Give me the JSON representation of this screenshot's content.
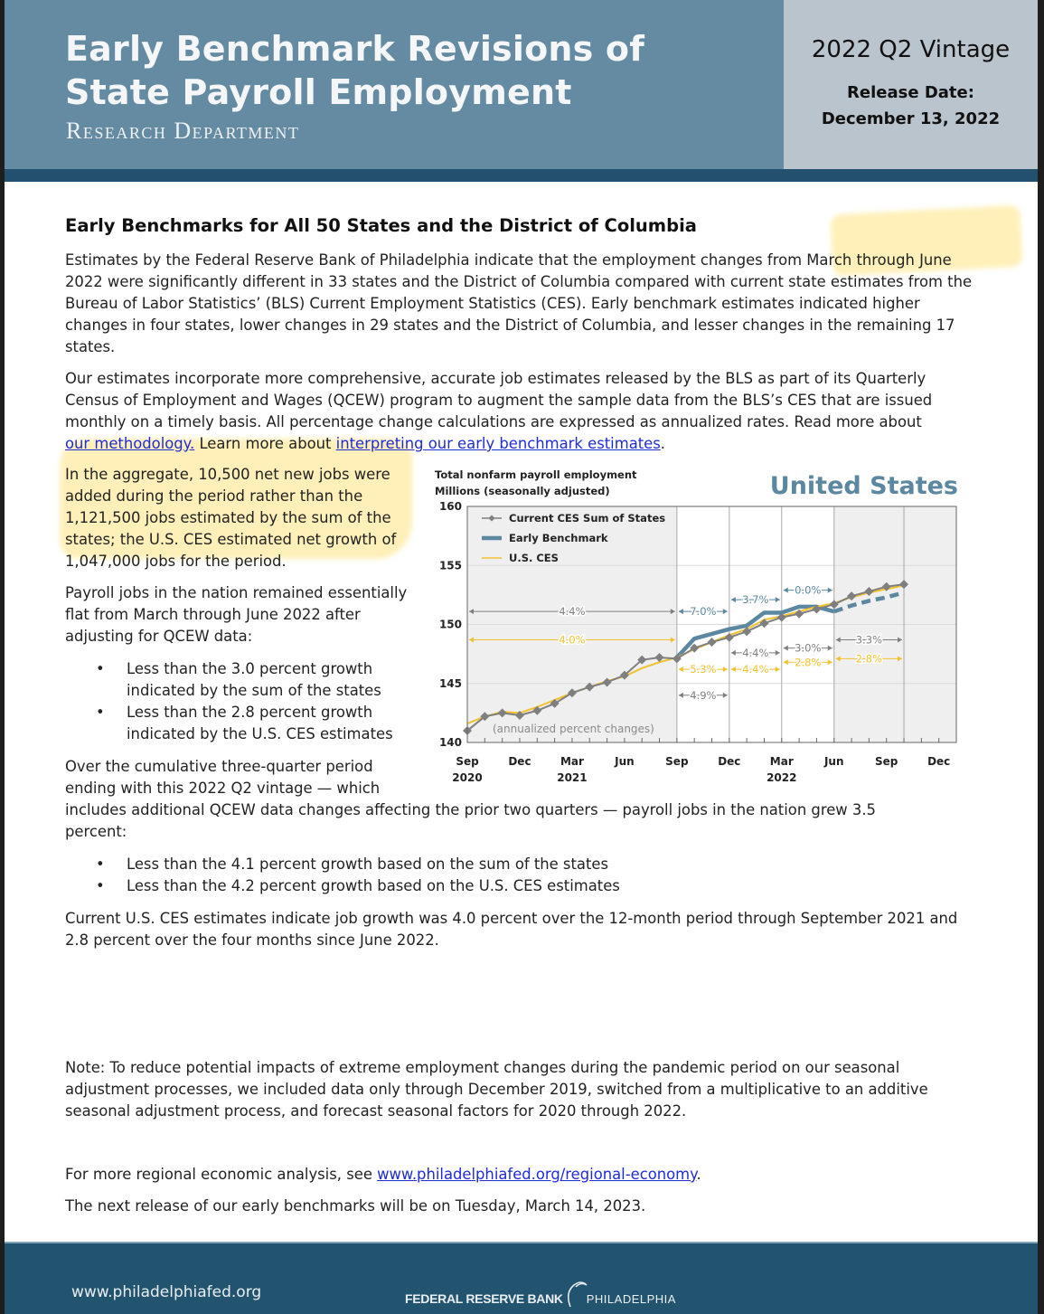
{
  "header": {
    "title_line1": "Early Benchmark Revisions of",
    "title_line2": "State Payroll Employment",
    "department": "Research Department",
    "vintage": "2022 Q2 Vintage",
    "release_label": "Release Date:",
    "release_date": "December 13, 2022"
  },
  "main": {
    "heading": "Early Benchmarks for All 50 States and the District of Columbia",
    "para1": "Estimates by the Federal Reserve Bank of Philadelphia indicate that the employment changes from March through June 2022 were significantly different in 33 states and the District of Columbia compared with current state estimates from the Bureau of Labor Statistics’ (BLS) Current Employment Statistics (CES). Early benchmark estimates indicated higher changes in four states, lower changes in 29 states and the District of Columbia, and lesser changes in the remaining 17 states.",
    "para2_a": "Our estimates incorporate more comprehensive, accurate job estimates released by the BLS as part of its Quarterly Census of Employment and Wages (QCEW) program to augment the sample data from the BLS’s CES that are issued monthly on a timely basis. All percentage change calculations are expressed as annualized rates. Read more about ",
    "link_methodology": "our methodology.",
    "para2_b": " Learn more about ",
    "link_interpreting": "interpreting our early benchmark estimates",
    "para2_c": ".",
    "para3": "In the aggregate, 10,500 net new jobs were added during the period rather than the 1,121,500 jobs estimated by the sum of the states; the U.S. CES estimated net growth of 1,047,000 jobs for the period.",
    "para4": "Payroll jobs in the nation remained essentially flat from March through June 2022 after adjusting for QCEW data:",
    "bullets1": [
      "Less than the 3.0 percent growth indicated by the sum of the states",
      "Less than the 2.8 percent growth indicated by the U.S. CES estimates"
    ],
    "para5_a": "Over the cumulative three-quarter period ending with this 2022 Q2 vintage — which",
    "para5_b": "includes additional QCEW data changes affecting the prior two quarters — payroll jobs in the nation grew 3.5 percent:",
    "bullets2": [
      "Less than the 4.1 percent growth based on the sum of the states",
      "Less than the 4.2 percent growth based on the U.S. CES estimates"
    ],
    "para6": "Current U.S. CES estimates indicate job growth was 4.0 percent over the 12-month period through September 2021 and 2.8 percent over the four months since June 2022.",
    "note": "Note: To reduce potential impacts of extreme employment changes during the pandemic period on our seasonal adjustment processes, we included data only through December 2019, switched from a multiplicative to an additive seasonal adjustment process, and forecast seasonal factors for 2020 through 2022.",
    "more_a": "For more regional economic analysis, see ",
    "more_link": "www.philadelphiafed.org/regional-economy",
    "more_b": ".",
    "next_release": "The next release of our early benchmarks will be on Tuesday, March 14, 2023."
  },
  "footer": {
    "url": "www.philadelphiafed.org",
    "logo_text_bold": "FEDERAL RESERVE BANK",
    "logo_text": "PHILADELPHIA"
  },
  "colors": {
    "header_blue": "#658ba2",
    "header_gray": "#b9c4cc",
    "dark_blue": "#23506f",
    "sum_states": "#7f7f7f",
    "early_benchmark": "#5b87a0",
    "us_ces": "#f2c12e"
  },
  "chart_data": {
    "type": "line",
    "title": "United States",
    "ylabel_line1": "Total nonfarm payroll employment",
    "ylabel_line2": "Millions (seasonally adjusted)",
    "note": "(annualized percent changes)",
    "ylim": [
      140,
      160
    ],
    "yticks": [
      "140",
      "145",
      "150",
      "155",
      "160"
    ],
    "xlim": [
      "2020-09",
      "2023-01"
    ],
    "xticks": [
      {
        "month": "2020-09",
        "label": "Sep",
        "year": "2020"
      },
      {
        "month": "2020-12",
        "label": "Dec",
        "year": ""
      },
      {
        "month": "2021-03",
        "label": "Mar",
        "year": "2021"
      },
      {
        "month": "2021-06",
        "label": "Jun",
        "year": ""
      },
      {
        "month": "2021-09",
        "label": "Sep",
        "year": ""
      },
      {
        "month": "2021-12",
        "label": "Dec",
        "year": ""
      },
      {
        "month": "2022-03",
        "label": "Mar",
        "year": "2022"
      },
      {
        "month": "2022-06",
        "label": "Jun",
        "year": ""
      },
      {
        "month": "2022-09",
        "label": "Sep",
        "year": ""
      },
      {
        "month": "2022-12",
        "label": "Dec",
        "year": ""
      }
    ],
    "legend_position": "top-left",
    "shaded_periods": [
      [
        "2020-09",
        "2021-09"
      ],
      [
        "2022-06",
        "2023-01"
      ]
    ],
    "period_lines": [
      "2021-09",
      "2021-12",
      "2022-03",
      "2022-06",
      "2022-10"
    ],
    "series": [
      {
        "name": "Current CES Sum of States",
        "color": "#7f7f7f",
        "style": "line-diamond",
        "start": "2020-09",
        "values": [
          141.0,
          142.2,
          142.5,
          142.3,
          142.7,
          143.3,
          144.2,
          144.7,
          145.1,
          145.7,
          147.0,
          147.2,
          147.1,
          148.0,
          148.5,
          148.9,
          149.4,
          150.1,
          150.6,
          150.9,
          151.3,
          151.7,
          152.4,
          152.8,
          153.2,
          153.4
        ]
      },
      {
        "name": "Early Benchmark",
        "color": "#5b87a0",
        "style": "thick",
        "start": "2021-09",
        "values": [
          147.2,
          148.8,
          149.2,
          149.6,
          149.9,
          151.0,
          151.0,
          151.5,
          151.5,
          151.1
        ],
        "dashed_start": "2022-06",
        "dashed_values": [
          151.1,
          151.6,
          152.0,
          152.3,
          152.7
        ]
      },
      {
        "name": "U.S. CES",
        "color": "#f2c12e",
        "style": "line",
        "start": "2020-09",
        "values": [
          141.6,
          142.2,
          142.6,
          142.5,
          143.0,
          143.6,
          144.2,
          144.7,
          145.2,
          145.6,
          146.3,
          146.8,
          147.2,
          147.9,
          148.5,
          149.1,
          149.6,
          150.4,
          150.7,
          151.1,
          151.5,
          151.8,
          152.3,
          152.7,
          153.0,
          153.3
        ]
      }
    ],
    "annotations": [
      {
        "text": "4.4%",
        "series": "Current CES Sum of States",
        "from": "2020-09",
        "to": "2021-09",
        "y": 151.1
      },
      {
        "text": "4.0%",
        "series": "U.S. CES",
        "from": "2020-09",
        "to": "2021-09",
        "y": 148.7
      },
      {
        "text": "7.0%",
        "series": "Early Benchmark",
        "from": "2021-09",
        "to": "2021-12",
        "y": 151.1
      },
      {
        "text": "5.3%",
        "series": "U.S. CES",
        "from": "2021-09",
        "to": "2021-12",
        "y": 146.2
      },
      {
        "text": "4.9%",
        "series": "Current CES Sum of States",
        "from": "2021-09",
        "to": "2021-12",
        "y": 144.0
      },
      {
        "text": "3.7%",
        "series": "Early Benchmark",
        "from": "2021-12",
        "to": "2022-03",
        "y": 152.1
      },
      {
        "text": "4.4%",
        "series": "Current CES Sum of States",
        "from": "2021-12",
        "to": "2022-03",
        "y": 147.6
      },
      {
        "text": "4.4%",
        "series": "U.S. CES",
        "from": "2021-12",
        "to": "2022-03",
        "y": 146.2
      },
      {
        "text": "0.0%",
        "series": "Early Benchmark",
        "from": "2022-03",
        "to": "2022-06",
        "y": 152.9
      },
      {
        "text": "3.0%",
        "series": "Current CES Sum of States",
        "from": "2022-03",
        "to": "2022-06",
        "y": 148.0
      },
      {
        "text": "2.8%",
        "series": "U.S. CES",
        "from": "2022-03",
        "to": "2022-06",
        "y": 146.8
      },
      {
        "text": "3.3%",
        "series": "Current CES Sum of States",
        "from": "2022-06",
        "to": "2022-10",
        "y": 148.7
      },
      {
        "text": "2.8%",
        "series": "U.S. CES",
        "from": "2022-06",
        "to": "2022-10",
        "y": 147.1
      }
    ]
  }
}
